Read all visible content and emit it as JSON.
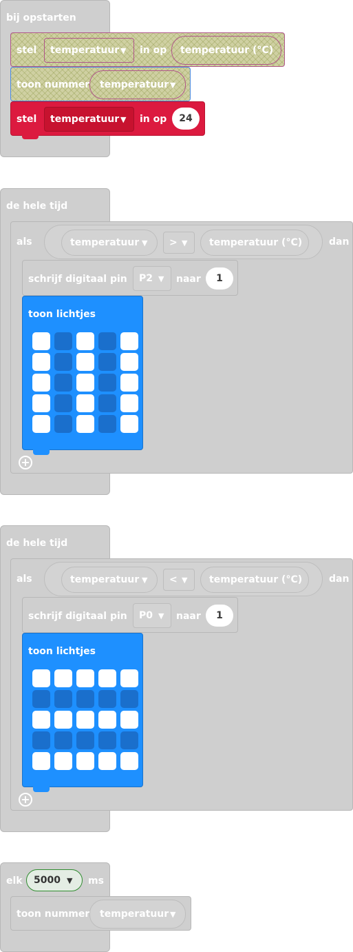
{
  "block1": {
    "hat": "bij opstarten",
    "set1": {
      "keyword": "stel",
      "variable": "temperatuur",
      "mid": "in op",
      "value": "temperatuur (°C)"
    },
    "show": {
      "keyword": "toon nummer",
      "value": "temperatuur"
    },
    "set2": {
      "keyword": "stel",
      "variable": "temperatuur",
      "mid": "in op",
      "value": "24"
    }
  },
  "block2": {
    "hat": "de hele tijd",
    "if": {
      "keyword": "als",
      "left": "temperatuur",
      "op": ">",
      "right": "temperatuur (°C)",
      "then": "dan"
    },
    "pin": {
      "keyword": "schrijf digitaal pin",
      "pin": "P2",
      "mid": "naar",
      "value": "1"
    },
    "leds": {
      "label": "toon lichtjes",
      "grid": [
        [
          1,
          0,
          1,
          0,
          1
        ],
        [
          1,
          0,
          1,
          0,
          1
        ],
        [
          1,
          0,
          1,
          0,
          1
        ],
        [
          1,
          0,
          1,
          0,
          1
        ],
        [
          1,
          0,
          1,
          0,
          1
        ]
      ]
    }
  },
  "block3": {
    "hat": "de hele tijd",
    "if": {
      "keyword": "als",
      "left": "temperatuur",
      "op": "<",
      "right": "temperatuur (°C)",
      "then": "dan"
    },
    "pin": {
      "keyword": "schrijf digitaal pin",
      "pin": "P0",
      "mid": "naar",
      "value": "1"
    },
    "leds": {
      "label": "toon lichtjes",
      "grid": [
        [
          1,
          1,
          1,
          1,
          1
        ],
        [
          0,
          0,
          0,
          0,
          0
        ],
        [
          1,
          1,
          1,
          1,
          1
        ],
        [
          0,
          0,
          0,
          0,
          0
        ],
        [
          1,
          1,
          1,
          1,
          1
        ]
      ]
    }
  },
  "block4": {
    "keyword": "elk",
    "interval": "5000",
    "unit": "ms",
    "show": {
      "keyword": "toon nummer",
      "value": "temperatuur"
    }
  },
  "icons": {
    "dropdown": "▼",
    "add": "+"
  }
}
